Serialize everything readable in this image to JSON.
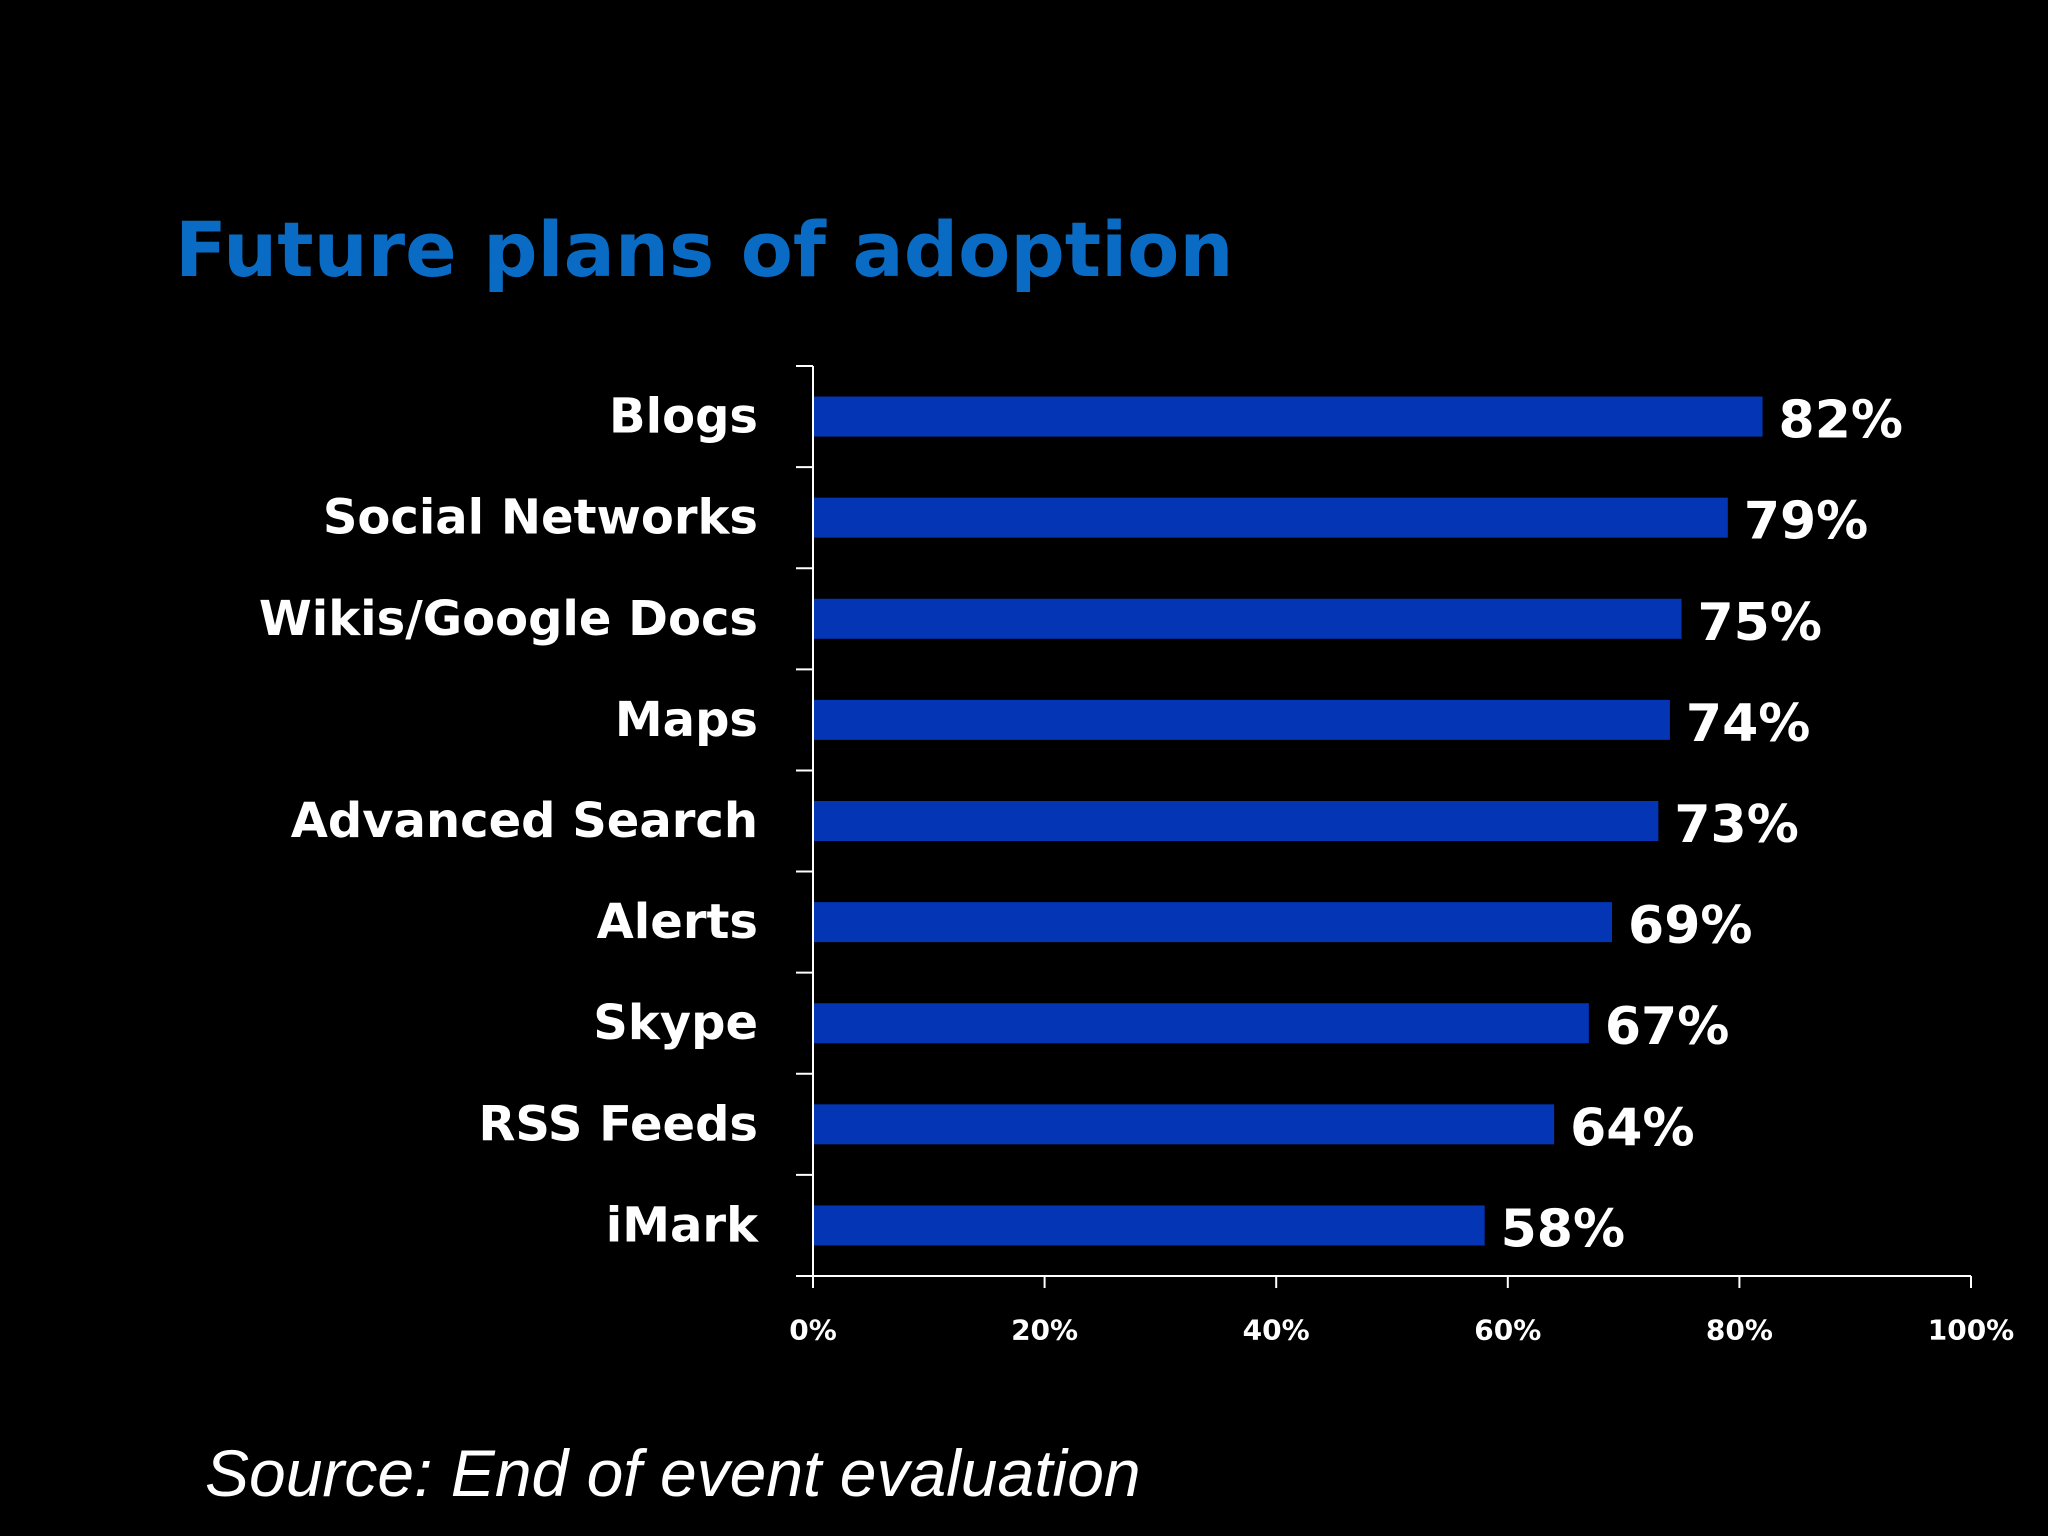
{
  "chart_data": {
    "type": "bar",
    "orientation": "horizontal",
    "title": "Future plans of adoption",
    "categories": [
      "Blogs",
      "Social Networks",
      "Wikis/Google Docs",
      "Maps",
      "Advanced Search",
      "Alerts",
      "Skype",
      "RSS Feeds",
      "iMark"
    ],
    "values": [
      82,
      79,
      75,
      74,
      73,
      69,
      67,
      64,
      58
    ],
    "data_labels": [
      "82%",
      "79%",
      "75%",
      "74%",
      "73%",
      "69%",
      "67%",
      "64%",
      "58%"
    ],
    "x_ticks": [
      0,
      20,
      40,
      60,
      80,
      100
    ],
    "x_tick_labels": [
      "0%",
      "20%",
      "40%",
      "60%",
      "80%",
      "100%"
    ],
    "xlim": [
      0,
      100
    ],
    "xlabel": "",
    "ylabel": "",
    "grid": false,
    "legend": "none"
  },
  "source_note": "Source: End of event evaluation",
  "colors": {
    "background": "#000000",
    "title": "#0a6bc4",
    "bar": "#0335b4",
    "text": "#ffffff",
    "axis": "#ffffff"
  }
}
